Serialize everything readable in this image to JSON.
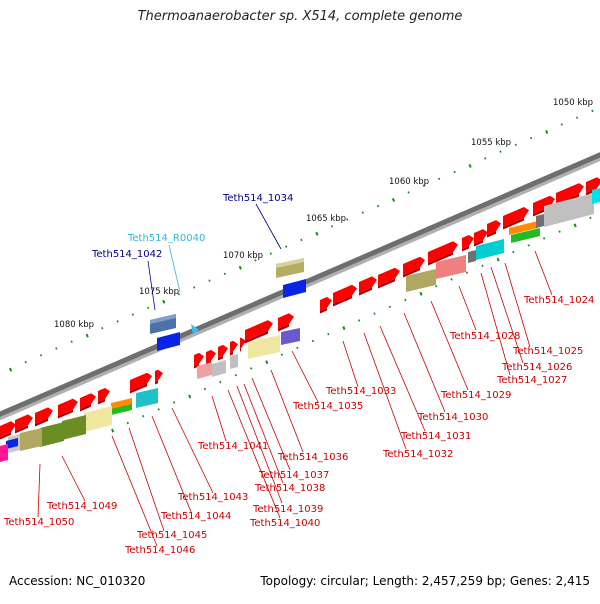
{
  "title": "Thermoanaerobacter sp. X514, complete genome",
  "accession": "Accession: NC_010320",
  "summary": "Topology: circular; Length: 2,457,259 bp; Genes: 2,415",
  "colors": {
    "backbone": "#7a7a7a",
    "dots": "#1a8a1a",
    "locus_label": "#cc0000",
    "gene_label": "#00008b",
    "rna_label": "#33b5d5",
    "cds": "#ff0000"
  },
  "scale_labels": [
    "1050 kbp",
    "1055 kbp",
    "1060 kbp",
    "1065 kbp",
    "1070 kbp",
    "1075 kbp",
    "1080 kbp"
  ],
  "gene_labels": {
    "blue": [
      "Teth514_1034",
      "Teth514_1042"
    ],
    "cyan": [
      "Teth514_R0040"
    ],
    "red": [
      "Teth514_1024",
      "Teth514_1025",
      "Teth514_1026",
      "Teth514_1027",
      "Teth514_1028",
      "Teth514_1029",
      "Teth514_1030",
      "Teth514_1031",
      "Teth514_1032",
      "Teth514_1033",
      "Teth514_1035",
      "Teth514_1036",
      "Teth514_1037",
      "Teth514_1038",
      "Teth514_1039",
      "Teth514_1040",
      "Teth514_1041",
      "Teth514_1043",
      "Teth514_1044",
      "Teth514_1045",
      "Teth514_1046",
      "Teth514_1049",
      "Teth514_1050"
    ]
  }
}
